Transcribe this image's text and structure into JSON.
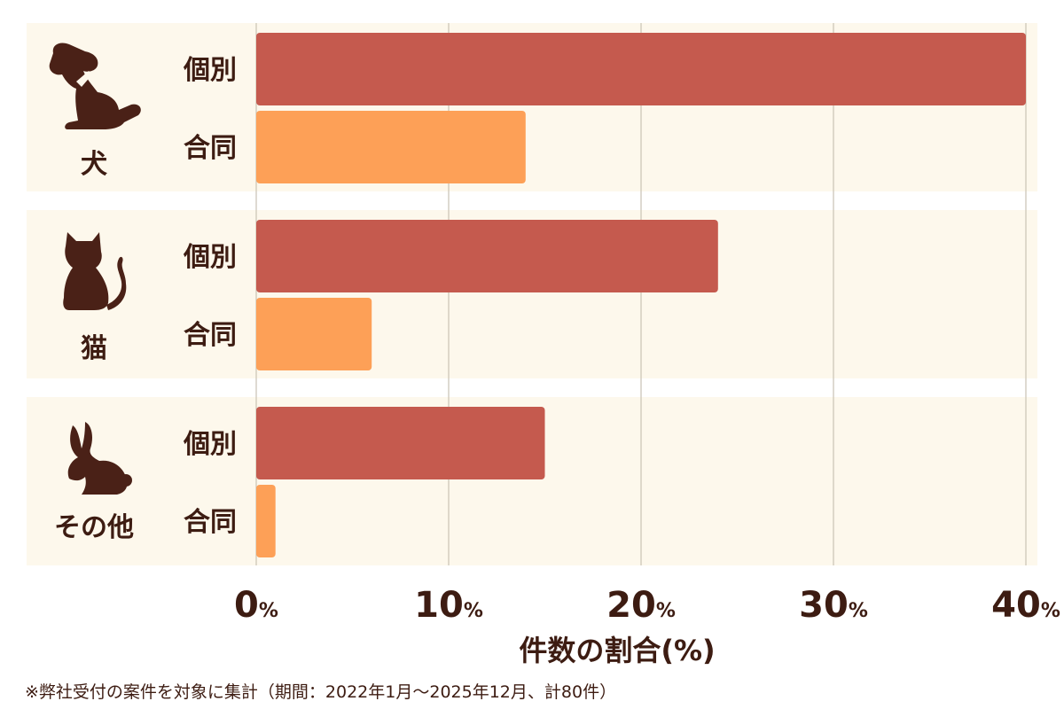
{
  "chart_data": {
    "type": "bar",
    "orientation": "horizontal",
    "groups": [
      {
        "label": "犬",
        "icon": "dog-icon"
      },
      {
        "label": "猫",
        "icon": "cat-icon"
      },
      {
        "label": "その他",
        "icon": "rabbit-icon"
      }
    ],
    "row_labels": [
      "個別",
      "合同"
    ],
    "series": [
      {
        "values": [
          40,
          14,
          24,
          6,
          15,
          1
        ]
      }
    ],
    "bar_colors": {
      "個別": "#c55a4e",
      "合同": "#fda057"
    },
    "xticks": [
      "0",
      "10",
      "20",
      "30",
      "40"
    ],
    "tick_unit": "%",
    "xlim": [
      0,
      40
    ],
    "xlabel": "件数の割合(%)",
    "grid": true,
    "panel_bg": "#fdf8ec",
    "grid_color": "#c9c2b4"
  },
  "footnote": "※弊社受付の案件を対象に集計（期間：2022年1月～2025年12月、計80件）"
}
